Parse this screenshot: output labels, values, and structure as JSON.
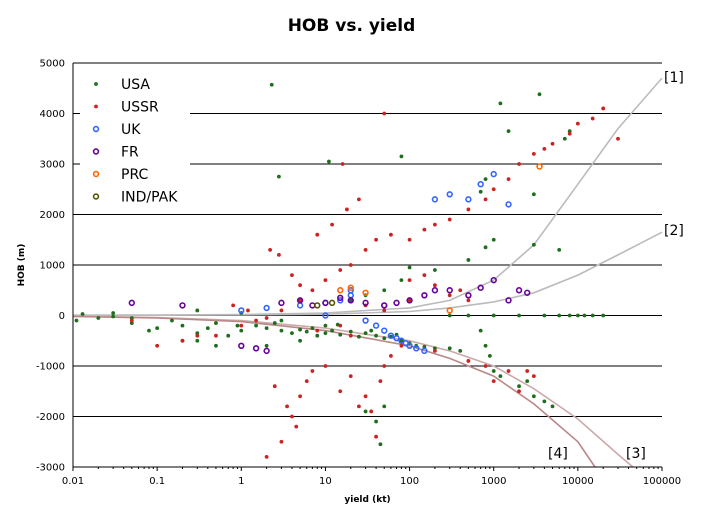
{
  "chart_data": {
    "type": "scatter",
    "title": "HOB vs. yield",
    "xlabel": "yield (kt)",
    "ylabel": "HOB (m)",
    "xscale": "log",
    "xlim": [
      0.01,
      100000
    ],
    "ylim": [
      -3000,
      5000
    ],
    "x_ticks": [
      "0.01",
      "0.1",
      "1",
      "10",
      "100",
      "1000",
      "10000",
      "100000"
    ],
    "y_ticks": [
      "-3000",
      "-2000",
      "-1000",
      "0",
      "1000",
      "2000",
      "3000",
      "4000",
      "5000"
    ],
    "grid": "horizontal",
    "legend_position": "top-left",
    "series": [
      {
        "name": "USA",
        "marker": "filled",
        "color": "#1e6e1e",
        "points": [
          [
            0.011,
            -100
          ],
          [
            0.013,
            30
          ],
          [
            0.02,
            -50
          ],
          [
            0.03,
            -20
          ],
          [
            0.05,
            -150
          ],
          [
            0.08,
            -300
          ],
          [
            0.1,
            -250
          ],
          [
            0.2,
            -200
          ],
          [
            0.3,
            -350
          ],
          [
            0.5,
            -150
          ],
          [
            0.7,
            -400
          ],
          [
            1,
            -300
          ],
          [
            1.5,
            -200
          ],
          [
            2,
            -250
          ],
          [
            3,
            -300
          ],
          [
            4,
            -350
          ],
          [
            5,
            -280
          ],
          [
            6,
            -320
          ],
          [
            8,
            -400
          ],
          [
            10,
            -350
          ],
          [
            12,
            -300
          ],
          [
            15,
            -380
          ],
          [
            20,
            -320
          ],
          [
            25,
            -420
          ],
          [
            30,
            -350
          ],
          [
            40,
            -400
          ],
          [
            50,
            -450
          ],
          [
            60,
            -420
          ],
          [
            80,
            -500
          ],
          [
            100,
            -550
          ],
          [
            120,
            -600
          ],
          [
            150,
            -620
          ],
          [
            200,
            -650
          ],
          [
            300,
            -650
          ],
          [
            400,
            -700
          ],
          [
            0.05,
            -50
          ],
          [
            0.15,
            -100
          ],
          [
            0.4,
            -250
          ],
          [
            0.9,
            -200
          ],
          [
            2.5,
            -150
          ],
          [
            7,
            -250
          ],
          [
            14,
            -180
          ],
          [
            35,
            -300
          ],
          [
            70,
            -380
          ],
          [
            0.03,
            50
          ],
          [
            0.3,
            100
          ],
          [
            1,
            50
          ],
          [
            3,
            -100
          ],
          [
            10,
            -200
          ],
          [
            2.3,
            4570
          ],
          [
            11,
            3050
          ],
          [
            2.8,
            2750
          ],
          [
            80,
            3150
          ],
          [
            1200,
            4200
          ],
          [
            3500,
            4380
          ],
          [
            1500,
            3650
          ],
          [
            8000,
            3650
          ],
          [
            7000,
            3500
          ],
          [
            800,
            2700
          ],
          [
            700,
            2450
          ],
          [
            3000,
            2400
          ],
          [
            1000,
            1500
          ],
          [
            6000,
            1300
          ],
          [
            3000,
            1400
          ],
          [
            800,
            1350
          ],
          [
            500,
            1100
          ],
          [
            200,
            900
          ],
          [
            100,
            950
          ],
          [
            80,
            700
          ],
          [
            50,
            500
          ],
          [
            30,
            400
          ],
          [
            20,
            300
          ],
          [
            1000,
            0
          ],
          [
            2000,
            0
          ],
          [
            4000,
            0
          ],
          [
            6000,
            0
          ],
          [
            8000,
            0
          ],
          [
            10000,
            0
          ],
          [
            12000,
            0
          ],
          [
            15000,
            0
          ],
          [
            20000,
            0
          ],
          [
            500,
            0
          ],
          [
            300,
            0
          ],
          [
            700,
            -300
          ],
          [
            800,
            -600
          ],
          [
            900,
            -800
          ],
          [
            1000,
            -1100
          ],
          [
            1200,
            -1200
          ],
          [
            2000,
            -1400
          ],
          [
            3000,
            -1600
          ],
          [
            4000,
            -1700
          ],
          [
            5000,
            -1800
          ],
          [
            2500,
            -1300
          ],
          [
            30,
            -1900
          ],
          [
            40,
            -2100
          ],
          [
            45,
            -2550
          ],
          [
            50,
            -1800
          ],
          [
            0.5,
            -600
          ],
          [
            0.3,
            -500
          ],
          [
            0.2,
            -500
          ],
          [
            2,
            -600
          ],
          [
            5,
            -500
          ]
        ]
      },
      {
        "name": "USSR",
        "marker": "filled",
        "color": "#cc2222",
        "points": [
          [
            0.05,
            -100
          ],
          [
            0.1,
            -600
          ],
          [
            0.2,
            -500
          ],
          [
            0.3,
            -400
          ],
          [
            0.5,
            -400
          ],
          [
            1,
            -200
          ],
          [
            1.5,
            -100
          ],
          [
            2,
            -50
          ],
          [
            3,
            100
          ],
          [
            5,
            300
          ],
          [
            7,
            500
          ],
          [
            10,
            700
          ],
          [
            15,
            900
          ],
          [
            20,
            1000
          ],
          [
            30,
            1300
          ],
          [
            40,
            1500
          ],
          [
            60,
            1600
          ],
          [
            100,
            1500
          ],
          [
            150,
            1700
          ],
          [
            200,
            1800
          ],
          [
            300,
            1900
          ],
          [
            500,
            2100
          ],
          [
            800,
            2300
          ],
          [
            1000,
            2500
          ],
          [
            1500,
            2700
          ],
          [
            2000,
            3000
          ],
          [
            3000,
            3200
          ],
          [
            4000,
            3300
          ],
          [
            5000,
            3400
          ],
          [
            8000,
            3600
          ],
          [
            10000,
            3800
          ],
          [
            15000,
            3900
          ],
          [
            20000,
            4100
          ],
          [
            30000,
            3500
          ],
          [
            10,
            -1000
          ],
          [
            15,
            -1500
          ],
          [
            20,
            -1200
          ],
          [
            25,
            -1800
          ],
          [
            30,
            -1600
          ],
          [
            35,
            -1900
          ],
          [
            40,
            -2400
          ],
          [
            45,
            -1300
          ],
          [
            50,
            -1000
          ],
          [
            60,
            -800
          ],
          [
            80,
            -600
          ],
          [
            2,
            -2800
          ],
          [
            3,
            -2500
          ],
          [
            4,
            -2000
          ],
          [
            5,
            -1600
          ],
          [
            6,
            -1300
          ],
          [
            7,
            -1100
          ],
          [
            2.5,
            -1400
          ],
          [
            3.5,
            -1800
          ],
          [
            4.5,
            -2200
          ],
          [
            0.8,
            200
          ],
          [
            1.2,
            100
          ],
          [
            2.2,
            1300
          ],
          [
            2.8,
            1200
          ],
          [
            4,
            800
          ],
          [
            5,
            600
          ],
          [
            8,
            1600
          ],
          [
            12,
            1800
          ],
          [
            18,
            2100
          ],
          [
            25,
            2300
          ],
          [
            16,
            3000
          ],
          [
            50,
            4000
          ],
          [
            100,
            700
          ],
          [
            150,
            800
          ],
          [
            200,
            600
          ],
          [
            300,
            400
          ],
          [
            400,
            500
          ],
          [
            500,
            300
          ],
          [
            100,
            300
          ],
          [
            30,
            200
          ],
          [
            50,
            100
          ],
          [
            15,
            -200
          ],
          [
            20,
            -400
          ],
          [
            8,
            -300
          ],
          [
            1000,
            -1300
          ],
          [
            1500,
            -1100
          ],
          [
            2000,
            -1500
          ],
          [
            2500,
            -1100
          ],
          [
            3000,
            -1200
          ],
          [
            200,
            -700
          ],
          [
            500,
            -900
          ],
          [
            800,
            -1000
          ]
        ]
      },
      {
        "name": "UK",
        "marker": "open",
        "color": "#3366ff",
        "points": [
          [
            1,
            100
          ],
          [
            2,
            150
          ],
          [
            5,
            200
          ],
          [
            10,
            250
          ],
          [
            15,
            300
          ],
          [
            20,
            400
          ],
          [
            30,
            -100
          ],
          [
            40,
            -200
          ],
          [
            50,
            -300
          ],
          [
            60,
            -400
          ],
          [
            70,
            -450
          ],
          [
            80,
            -500
          ],
          [
            90,
            -550
          ],
          [
            100,
            -600
          ],
          [
            120,
            -650
          ],
          [
            150,
            -700
          ],
          [
            200,
            2300
          ],
          [
            300,
            2400
          ],
          [
            500,
            2300
          ],
          [
            700,
            2600
          ],
          [
            1000,
            2800
          ],
          [
            1500,
            2200
          ],
          [
            20,
            500
          ],
          [
            50,
            200
          ],
          [
            10,
            0
          ]
        ]
      },
      {
        "name": "FR",
        "marker": "open",
        "color": "#660099",
        "points": [
          [
            0.05,
            250
          ],
          [
            0.2,
            200
          ],
          [
            1,
            -600
          ],
          [
            1.5,
            -650
          ],
          [
            2,
            -700
          ],
          [
            3,
            250
          ],
          [
            5,
            300
          ],
          [
            7,
            200
          ],
          [
            10,
            250
          ],
          [
            15,
            350
          ],
          [
            20,
            300
          ],
          [
            30,
            250
          ],
          [
            50,
            200
          ],
          [
            70,
            250
          ],
          [
            100,
            300
          ],
          [
            150,
            400
          ],
          [
            200,
            500
          ],
          [
            300,
            500
          ],
          [
            500,
            400
          ],
          [
            700,
            550
          ],
          [
            1000,
            700
          ],
          [
            2000,
            500
          ],
          [
            2500,
            450
          ],
          [
            1500,
            300
          ]
        ]
      },
      {
        "name": "PRC",
        "marker": "open",
        "color": "#ff6600",
        "points": [
          [
            15,
            500
          ],
          [
            20,
            550
          ],
          [
            30,
            450
          ],
          [
            300,
            100
          ],
          [
            3500,
            2950
          ]
        ]
      },
      {
        "name": "IND/PAK",
        "marker": "open",
        "color": "#555500",
        "points": [
          [
            8,
            200
          ],
          [
            12,
            250
          ]
        ]
      }
    ],
    "curves": [
      {
        "label": "[1]",
        "color": "#bbbbbb",
        "points": [
          [
            0.01,
            5
          ],
          [
            0.1,
            10
          ],
          [
            1,
            20
          ],
          [
            10,
            50
          ],
          [
            100,
            150
          ],
          [
            300,
            300
          ],
          [
            1000,
            700
          ],
          [
            3000,
            1400
          ],
          [
            10000,
            2600
          ],
          [
            30000,
            3700
          ],
          [
            100000,
            4700
          ]
        ]
      },
      {
        "label": "[2]",
        "color": "#bbbbbb",
        "points": [
          [
            0.01,
            3
          ],
          [
            0.1,
            6
          ],
          [
            1,
            10
          ],
          [
            10,
            25
          ],
          [
            100,
            80
          ],
          [
            300,
            150
          ],
          [
            1000,
            270
          ],
          [
            3000,
            450
          ],
          [
            10000,
            800
          ],
          [
            30000,
            1200
          ],
          [
            100000,
            1650
          ]
        ]
      },
      {
        "label": "[3]",
        "color": "#ccaaaa",
        "points": [
          [
            0.01,
            -15
          ],
          [
            0.1,
            -40
          ],
          [
            1,
            -100
          ],
          [
            10,
            -250
          ],
          [
            100,
            -500
          ],
          [
            300,
            -700
          ],
          [
            1000,
            -1000
          ],
          [
            3000,
            -1450
          ],
          [
            10000,
            -2050
          ],
          [
            30000,
            -2750
          ],
          [
            45000,
            -3000
          ]
        ]
      },
      {
        "label": "[4]",
        "color": "#bb8888",
        "points": [
          [
            0.01,
            -20
          ],
          [
            0.1,
            -50
          ],
          [
            1,
            -120
          ],
          [
            10,
            -300
          ],
          [
            100,
            -600
          ],
          [
            300,
            -850
          ],
          [
            1000,
            -1200
          ],
          [
            3000,
            -1750
          ],
          [
            10000,
            -2500
          ],
          [
            16000,
            -3000
          ]
        ]
      }
    ]
  }
}
